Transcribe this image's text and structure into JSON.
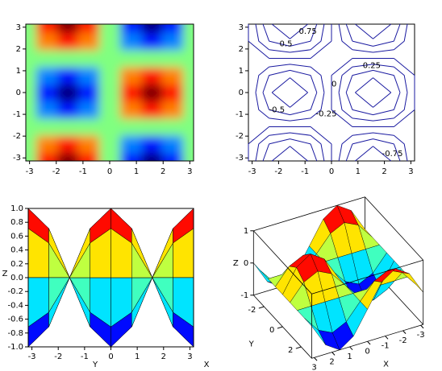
{
  "chart_data": [
    {
      "type": "heatmap",
      "colormap": "jet",
      "x": [
        -3.14,
        -2.36,
        -1.57,
        -0.79,
        0,
        0.79,
        1.57,
        2.36,
        3.14
      ],
      "y": [
        -3.14,
        -2.36,
        -1.57,
        -0.79,
        0,
        0.79,
        1.57,
        2.36,
        3.14
      ],
      "z": [
        [
          0,
          0.71,
          1,
          0.71,
          0,
          -0.71,
          -1,
          -0.71,
          0
        ],
        [
          0,
          0.5,
          0.71,
          0.5,
          0,
          -0.5,
          -0.71,
          -0.5,
          0
        ],
        [
          0,
          0,
          0,
          0,
          0,
          0,
          0,
          0,
          0
        ],
        [
          0,
          -0.5,
          -0.71,
          -0.5,
          0,
          0.5,
          0.71,
          0.5,
          0
        ],
        [
          0,
          -0.71,
          -1,
          -0.71,
          0,
          0.71,
          1,
          0.71,
          0
        ],
        [
          0,
          -0.5,
          -0.71,
          -0.5,
          0,
          0.5,
          0.71,
          0.5,
          0
        ],
        [
          0,
          0,
          0,
          0,
          0,
          0,
          0,
          0,
          0
        ],
        [
          0,
          0.5,
          0.71,
          0.5,
          0,
          -0.5,
          -0.71,
          -0.5,
          0
        ],
        [
          0,
          0.71,
          1,
          0.71,
          0,
          -0.71,
          -1,
          -0.71,
          0
        ]
      ],
      "xlim": [
        -3.14,
        3.14
      ],
      "ylim": [
        -3.14,
        3.14
      ],
      "xticks": [
        -3,
        -2,
        -1,
        0,
        1,
        2,
        3
      ],
      "yticks": [
        -3,
        -2,
        -1,
        0,
        1,
        2,
        3
      ]
    },
    {
      "type": "contour",
      "color": "#1a1aa0",
      "levels": [
        -0.75,
        -0.5,
        -0.25,
        0,
        0.25,
        0.5,
        0.75
      ],
      "xlim": [
        -3.14,
        3.14
      ],
      "ylim": [
        -3.14,
        3.14
      ],
      "xticks": [
        -3,
        -2,
        -1,
        0,
        1,
        2,
        3
      ],
      "yticks": [
        -3,
        -2,
        -1,
        0,
        1,
        2,
        3
      ]
    },
    {
      "type": "surface-side",
      "xlabel": "Y",
      "ylabel": "Z",
      "depth_label": "X",
      "xlim": [
        -3.14,
        3.14
      ],
      "ylim": [
        -1,
        1
      ],
      "xticks": [
        -3,
        -2,
        -1,
        0,
        1,
        2,
        3
      ],
      "yticks": [
        {
          "value": -1,
          "label": "-1.0"
        },
        -0.8,
        -0.6,
        -0.4,
        -0.2,
        {
          "value": 0,
          "label": "0.0"
        },
        0.2,
        0.4,
        0.6,
        0.8,
        {
          "value": 1,
          "label": "1.0"
        }
      ]
    },
    {
      "type": "surface-3d",
      "xlabel": "X",
      "ylabel": "Y",
      "zlabel": "Z",
      "xticks": [
        -3,
        -2,
        -1,
        0,
        1,
        2,
        3
      ],
      "yticks": [
        -2,
        0,
        2
      ],
      "zticks": [
        -1,
        0,
        1
      ]
    }
  ]
}
